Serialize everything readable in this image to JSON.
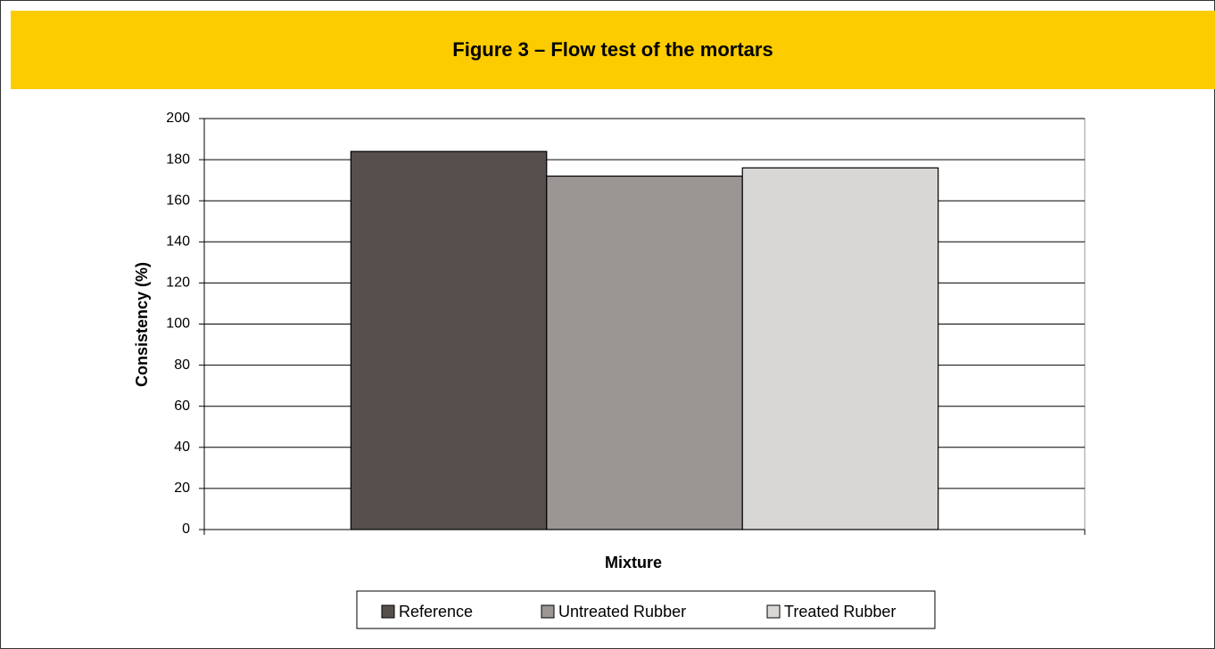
{
  "chart_data": {
    "type": "bar",
    "title": "Figure 3 – Flow test of the mortars",
    "x_label": "Mixture",
    "y_label": "Consistency (%)",
    "categories": [
      null
    ],
    "series": [
      {
        "name": "Reference",
        "color": "#574f4c",
        "values": [
          184
        ]
      },
      {
        "name": "Untreated Rubber",
        "color": "#9b9693",
        "values": [
          172
        ]
      },
      {
        "name": "Treated Rubber",
        "color": "#d8d7d5",
        "values": [
          176
        ]
      }
    ],
    "ylim": [
      0,
      200
    ],
    "yticks": [
      0,
      20,
      40,
      60,
      80,
      100,
      120,
      140,
      160,
      180,
      200
    ],
    "grid": true,
    "legend": "bottom"
  }
}
